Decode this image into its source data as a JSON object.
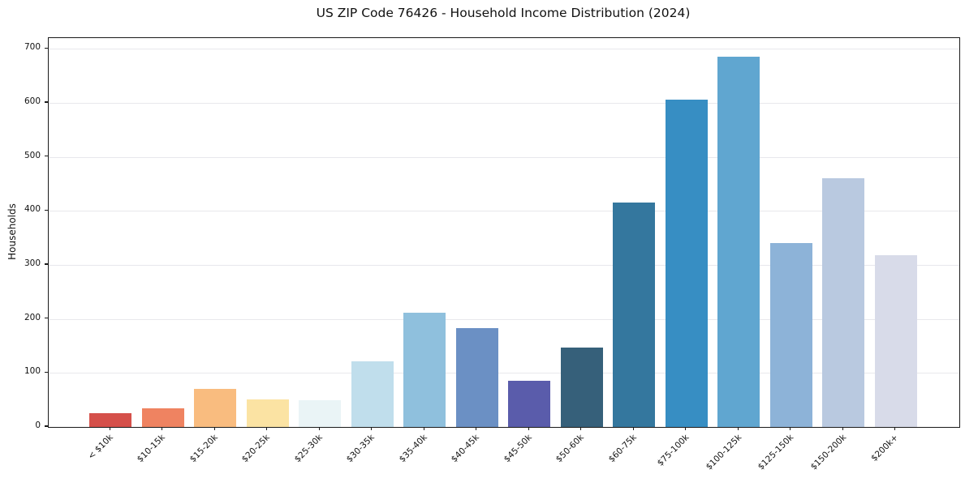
{
  "title": "US ZIP Code 76426 - Household Income Distribution (2024)",
  "chart_data": {
    "type": "bar",
    "title": "US ZIP Code 76426 - Household Income Distribution (2024)",
    "xlabel": "",
    "ylabel": "Households",
    "ylim": [
      0,
      720
    ],
    "yticks": [
      0,
      100,
      200,
      300,
      400,
      500,
      600,
      700
    ],
    "grid": "horizontal-only",
    "legend": "none",
    "categories": [
      "< $10k",
      "$10-15k",
      "$15-20k",
      "$20-25k",
      "$25-30k",
      "$30-35k",
      "$35-40k",
      "$40-45k",
      "$45-50k",
      "$50-60k",
      "$60-75k",
      "$75-100k",
      "$100-125k",
      "$125-150k",
      "$150-200k",
      "$200k+"
    ],
    "values": [
      26,
      35,
      71,
      51,
      50,
      121,
      212,
      183,
      86,
      147,
      415,
      606,
      686,
      340,
      460,
      318
    ],
    "bar_colors": [
      "#d5504a",
      "#ef8361",
      "#f9bc7f",
      "#fbe3a3",
      "#eaf4f6",
      "#c0deec",
      "#8fc0dd",
      "#6b90c4",
      "#5a5cab",
      "#36607a",
      "#34779e",
      "#378ec3",
      "#60a6d0",
      "#8db3d8",
      "#b9c9e0",
      "#d8dbe9"
    ]
  },
  "colors": {
    "background": "#ffffff",
    "grid": "#e8e8ec",
    "spine": "#1a1a1a",
    "text": "#111111"
  }
}
